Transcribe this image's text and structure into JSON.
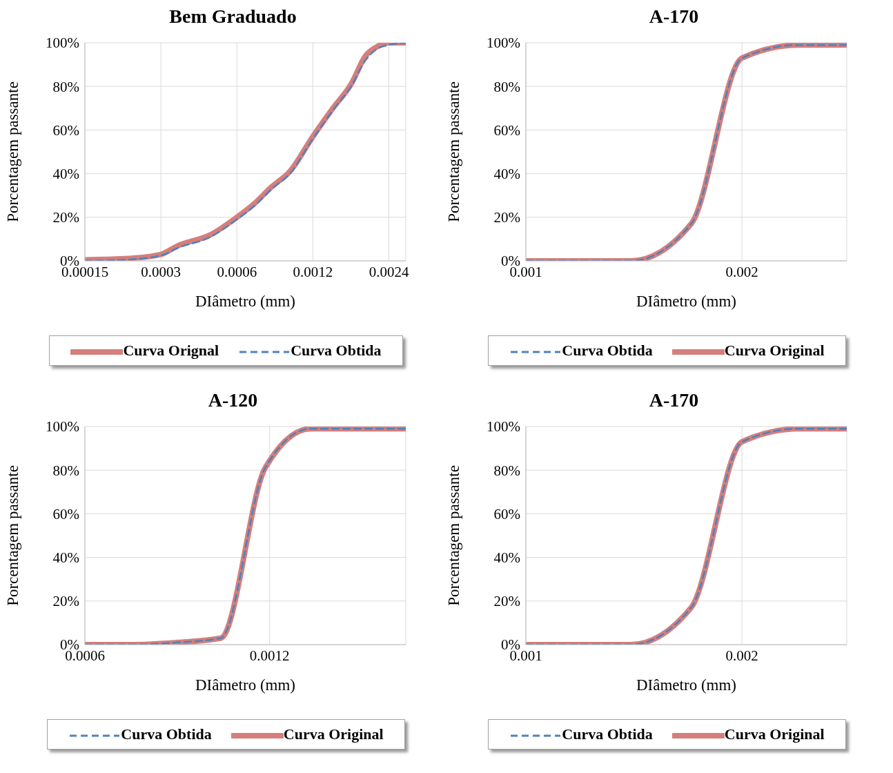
{
  "chart_data": [
    {
      "type": "line",
      "title": "Bem Graduado",
      "xlabel": "DIâmetro (mm)",
      "ylabel": "Porcentagem passante",
      "log": "x",
      "grid": true,
      "legend": "bottom",
      "xlim": [
        0.00015,
        0.0028
      ],
      "xticks": [
        0.00015,
        0.0003,
        0.0006,
        0.0012,
        0.0024
      ],
      "ylim": [
        0,
        100
      ],
      "yticks": [
        {
          "value": 0,
          "label": "0%"
        },
        {
          "value": 20,
          "label": "20%"
        },
        {
          "value": 40,
          "label": "40%"
        },
        {
          "value": 60,
          "label": "60%"
        },
        {
          "value": 80,
          "label": "80%"
        },
        {
          "value": 100,
          "label": "100%"
        }
      ],
      "series": [
        {
          "name": "Curva Orignal",
          "color": "#d47f7c",
          "line_style": "solid",
          "x": [
            0.00015,
            0.000214,
            0.0003,
            0.000351,
            0.000472,
            0.0006,
            0.0007,
            0.000825,
            0.000973,
            0.0012,
            0.00144,
            0.0017,
            0.00194,
            0.00214,
            0.0024,
            0.0028
          ],
          "values": [
            0.5,
            1,
            3,
            7,
            12,
            20,
            26,
            34,
            41,
            57,
            70,
            81,
            94,
            98,
            100,
            100
          ]
        },
        {
          "name": "Curva Obtida",
          "color": "#4f81bd",
          "line_style": "dashed",
          "x": [
            0.00015,
            0.000214,
            0.0003,
            0.000351,
            0.000472,
            0.0006,
            0.0007,
            0.000825,
            0.000973,
            0.0012,
            0.00144,
            0.0017,
            0.00194,
            0.00214,
            0.0024,
            0.0028
          ],
          "values": [
            0,
            0.5,
            2.5,
            6,
            11,
            19,
            25,
            33,
            40,
            56,
            69,
            80,
            92,
            97,
            99,
            100
          ]
        }
      ]
    },
    {
      "type": "line",
      "title": "A-170",
      "xlabel": "DIâmetro (mm)",
      "ylabel": "Porcentagem passante",
      "log": "x",
      "grid": true,
      "legend": "bottom",
      "xlim": [
        0.001,
        0.0028
      ],
      "xticks": [
        0.001,
        0.002
      ],
      "ylim": [
        0,
        100
      ],
      "yticks": [
        {
          "value": 0,
          "label": "0%"
        },
        {
          "value": 20,
          "label": "20%"
        },
        {
          "value": 40,
          "label": "40%"
        },
        {
          "value": 60,
          "label": "60%"
        },
        {
          "value": 80,
          "label": "80%"
        },
        {
          "value": 100,
          "label": "100%"
        }
      ],
      "series": [
        {
          "name": "Curva Obtida",
          "color": "#4f81bd",
          "line_style": "dashed",
          "x": [
            0.001,
            0.0014,
            0.0017,
            0.002,
            0.0024,
            0.0028
          ],
          "values": [
            0,
            0,
            17,
            93,
            99,
            99
          ]
        },
        {
          "name": "Curva Original",
          "color": "#d47f7c",
          "line_style": "solid",
          "x": [
            0.001,
            0.0014,
            0.0017,
            0.002,
            0.0024,
            0.0028
          ],
          "values": [
            0,
            0,
            17,
            93,
            99,
            99
          ]
        }
      ]
    },
    {
      "type": "line",
      "title": "A-120",
      "xlabel": "DIâmetro (mm)",
      "ylabel": "Porcentagem passante",
      "log": "x",
      "grid": true,
      "legend": "bottom",
      "xlim": [
        0.0006,
        0.002
      ],
      "xticks": [
        0.0006,
        0.0012
      ],
      "ylim": [
        0,
        100
      ],
      "yticks": [
        {
          "value": 0,
          "label": "0%"
        },
        {
          "value": 20,
          "label": "20%"
        },
        {
          "value": 40,
          "label": "40%"
        },
        {
          "value": 60,
          "label": "60%"
        },
        {
          "value": 80,
          "label": "80%"
        },
        {
          "value": 100,
          "label": "100%"
        }
      ],
      "series": [
        {
          "name": "Curva Obtida",
          "color": "#4f81bd",
          "line_style": "dashed",
          "x": [
            0.0006,
            0.00071,
            0.00085,
            0.001,
            0.00118,
            0.0014,
            0.002
          ],
          "values": [
            0,
            0,
            1,
            3,
            81,
            99,
            99
          ]
        },
        {
          "name": "Curva Original",
          "color": "#d47f7c",
          "line_style": "solid",
          "x": [
            0.0006,
            0.00071,
            0.00085,
            0.001,
            0.00118,
            0.0014,
            0.002
          ],
          "values": [
            0,
            0,
            1,
            3,
            81,
            99,
            99
          ]
        }
      ]
    },
    {
      "type": "line",
      "title": "A-170",
      "xlabel": "DIâmetro (mm)",
      "ylabel": "Porcentagem passante",
      "log": "x",
      "grid": true,
      "legend": "bottom",
      "xlim": [
        0.001,
        0.0028
      ],
      "xticks": [
        0.001,
        0.002
      ],
      "ylim": [
        0,
        100
      ],
      "yticks": [
        {
          "value": 0,
          "label": "0%"
        },
        {
          "value": 20,
          "label": "20%"
        },
        {
          "value": 40,
          "label": "40%"
        },
        {
          "value": 60,
          "label": "60%"
        },
        {
          "value": 80,
          "label": "80%"
        },
        {
          "value": 100,
          "label": "100%"
        }
      ],
      "series": [
        {
          "name": "Curva Obtida",
          "color": "#4f81bd",
          "line_style": "dashed",
          "x": [
            0.001,
            0.0014,
            0.0017,
            0.002,
            0.0024,
            0.0028
          ],
          "values": [
            0,
            0,
            17,
            93,
            99,
            99
          ]
        },
        {
          "name": "Curva Original",
          "color": "#d47f7c",
          "line_style": "solid",
          "x": [
            0.001,
            0.0014,
            0.0017,
            0.002,
            0.0024,
            0.0028
          ],
          "values": [
            0,
            0,
            17,
            93,
            99,
            99
          ]
        }
      ]
    }
  ]
}
